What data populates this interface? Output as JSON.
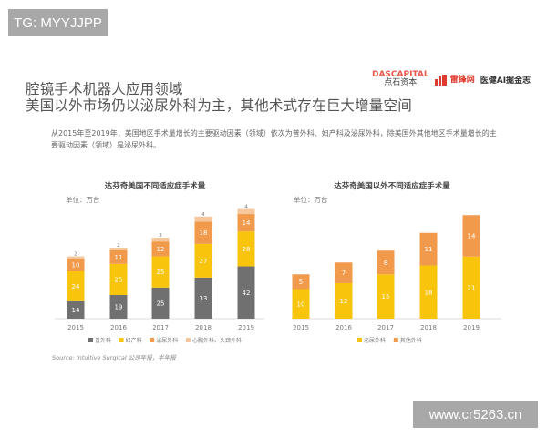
{
  "watermarks": {
    "top_left": "TG: MYYJJPP",
    "bottom_right": "www.cr5263.cn"
  },
  "header": {
    "title_line1": "腔镜手术机器人应用领域",
    "title_line2": "美国以外市场仍以泌尿外科为主，其他术式存在巨大增量空间",
    "logos": {
      "das_en": "DASCAPITAL",
      "das_cn": "点石资本",
      "leifeng": "雷锋网",
      "yijian": "医健AI掘金志"
    }
  },
  "description": "从2015年至2019年，美国地区手术量增长的主要驱动因素（领域）依次为普外科、妇产科及泌尿外科，除美国外其他地区手术量增长的主要驱动因素（领域）是泌尿外科。",
  "source": "Source: Intuitive Surgical 公司年报，半年报",
  "chart_data": [
    {
      "type": "bar",
      "stacked": true,
      "title": "达芬奇美国不同适应症手术量",
      "unit": "单位：万台",
      "categories": [
        "2015",
        "2016",
        "2017",
        "2018",
        "2019"
      ],
      "series": [
        {
          "name": "普外科",
          "color": "#707070",
          "values": [
            14,
            19,
            25,
            33,
            42
          ]
        },
        {
          "name": "妇产科",
          "color": "#f8c40c",
          "values": [
            24,
            25,
            25,
            27,
            28
          ]
        },
        {
          "name": "泌尿外科",
          "color": "#f19a4b",
          "values": [
            10,
            11,
            12,
            18,
            14
          ]
        },
        {
          "name": "心胸外科、头颈外科",
          "color": "#f6c79c",
          "values": [
            2,
            2,
            3,
            4,
            4
          ]
        }
      ],
      "ylim": [
        0,
        95
      ],
      "legend": "bottom"
    },
    {
      "type": "bar",
      "stacked": true,
      "title": "达芬奇美国以外不同适应症手术量",
      "unit": "单位：万台",
      "categories": [
        "2015",
        "2016",
        "2017",
        "2018",
        "2019"
      ],
      "series": [
        {
          "name": "泌尿外科",
          "color": "#f8c40c",
          "values": [
            10,
            12,
            15,
            18,
            21
          ]
        },
        {
          "name": "其他外科",
          "color": "#f19a4b",
          "values": [
            5,
            7,
            8,
            11,
            14
          ]
        }
      ],
      "ylim": [
        0,
        40
      ],
      "legend": "bottom"
    }
  ]
}
